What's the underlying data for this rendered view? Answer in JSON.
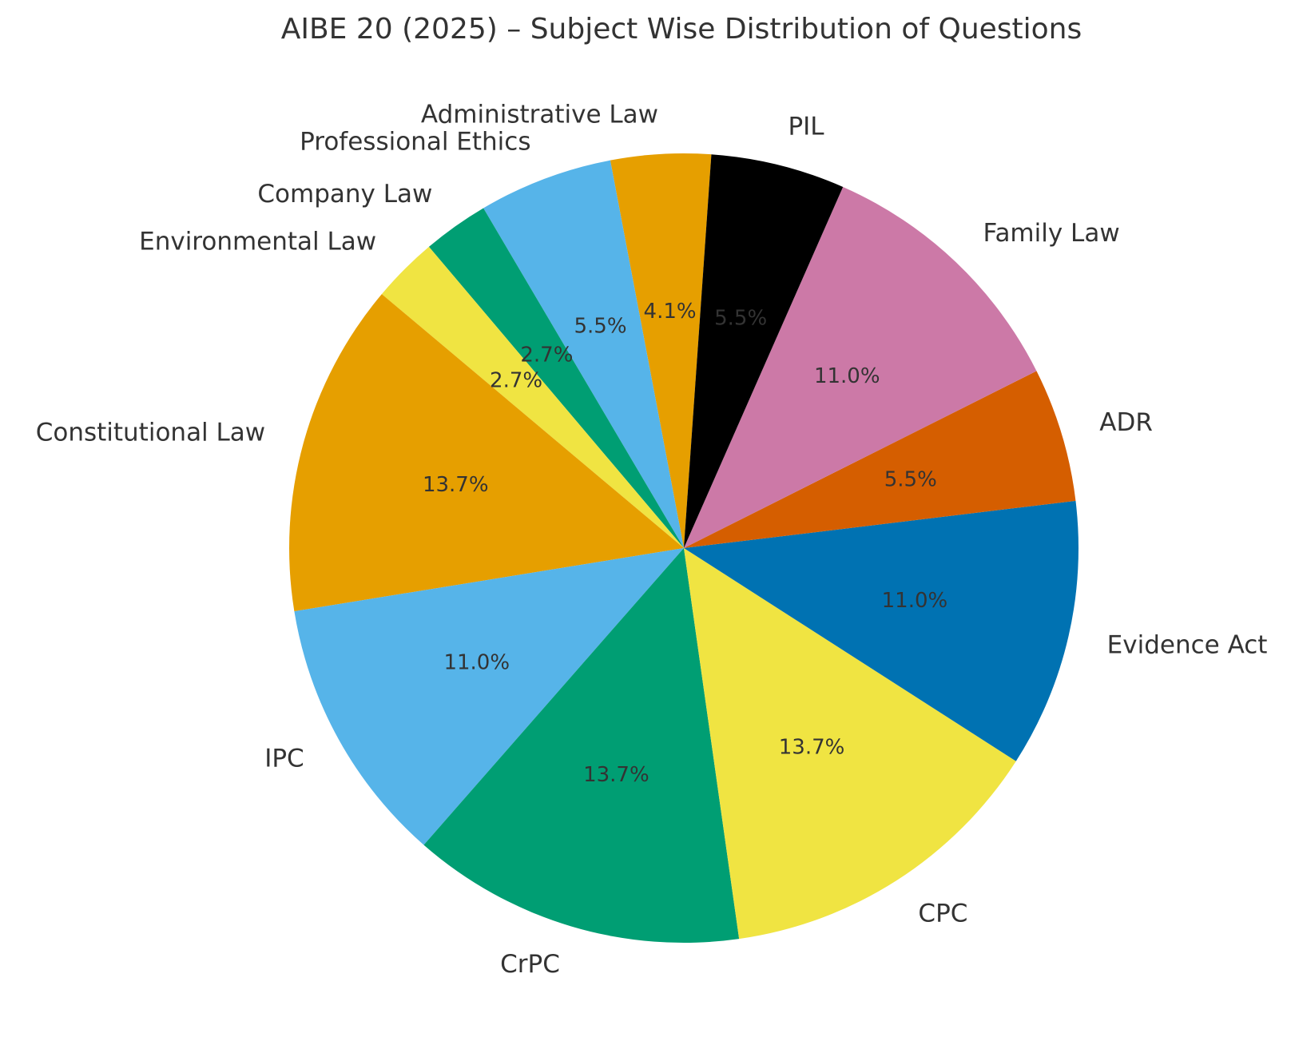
{
  "chart_data": {
    "type": "pie",
    "title": "AIBE 20 (2025) – Subject Wise Distribution of Questions",
    "start_angle_deg": 86,
    "direction": "counterclockwise",
    "slices": [
      {
        "label": "Administrative Law",
        "value": 4.1,
        "pct_label": "4.1%",
        "color": "#E69F00"
      },
      {
        "label": "Professional Ethics",
        "value": 5.5,
        "pct_label": "5.5%",
        "color": "#56B4E9"
      },
      {
        "label": "Company Law",
        "value": 2.7,
        "pct_label": "2.7%",
        "color": "#009E73"
      },
      {
        "label": "Environmental Law",
        "value": 2.7,
        "pct_label": "2.7%",
        "color": "#F0E442"
      },
      {
        "label": "Constitutional Law",
        "value": 13.7,
        "pct_label": "13.7%",
        "color": "#E69F00"
      },
      {
        "label": "IPC",
        "value": 11.0,
        "pct_label": "11.0%",
        "color": "#56B4E9"
      },
      {
        "label": "CrPC",
        "value": 13.7,
        "pct_label": "13.7%",
        "color": "#009E73"
      },
      {
        "label": "CPC",
        "value": 13.7,
        "pct_label": "13.7%",
        "color": "#F0E442"
      },
      {
        "label": "Evidence Act",
        "value": 11.0,
        "pct_label": "11.0%",
        "color": "#0072B2"
      },
      {
        "label": "ADR",
        "value": 5.5,
        "pct_label": "5.5%",
        "color": "#D55E00"
      },
      {
        "label": "Family Law",
        "value": 11.0,
        "pct_label": "11.0%",
        "color": "#CC79A7"
      },
      {
        "label": "PIL",
        "value": 5.5,
        "pct_label": "5.5%",
        "color": "#000000"
      }
    ]
  }
}
